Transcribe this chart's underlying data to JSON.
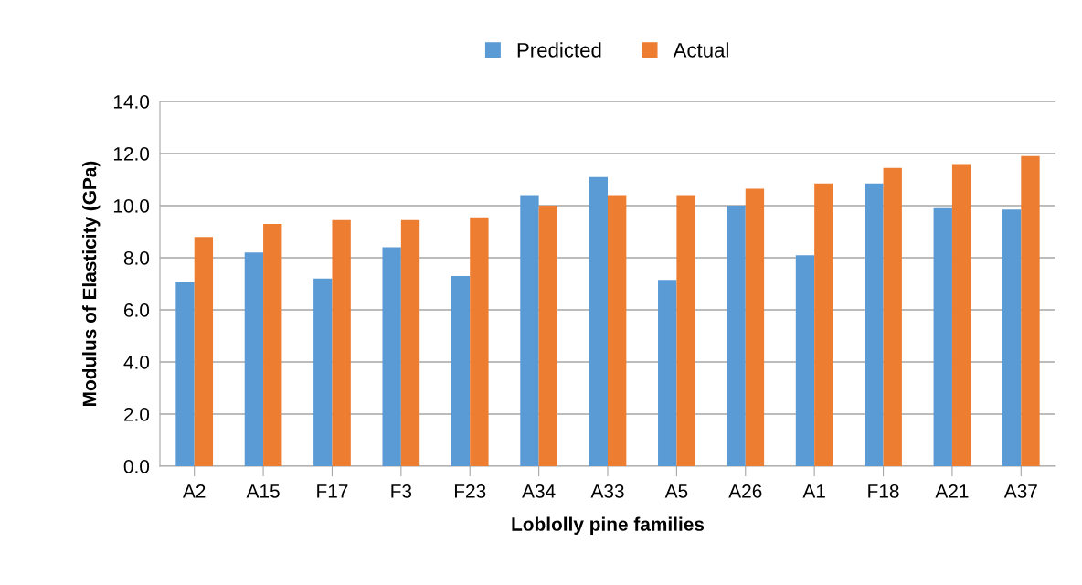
{
  "chart_data": {
    "type": "bar",
    "xlabel": "Loblolly pine families",
    "ylabel": "Modulus of Elasticity (GPa)",
    "categories": [
      "A2",
      "A15",
      "F17",
      "F3",
      "F23",
      "A34",
      "A33",
      "A5",
      "A26",
      "A1",
      "F18",
      "A21",
      "A37"
    ],
    "series": [
      {
        "name": "Predicted",
        "color": "#5b9bd5",
        "values": [
          7.05,
          8.2,
          7.2,
          8.4,
          7.3,
          10.4,
          11.1,
          7.15,
          10.0,
          8.1,
          10.85,
          9.9,
          9.85
        ]
      },
      {
        "name": "Actual",
        "color": "#ed7d31",
        "values": [
          8.8,
          9.3,
          9.45,
          9.45,
          9.55,
          10.0,
          10.4,
          10.4,
          10.65,
          10.85,
          11.45,
          11.6,
          11.9
        ]
      }
    ],
    "ylim": [
      0,
      14
    ],
    "yticks": [
      {
        "value": 0,
        "label": "0.0"
      },
      {
        "value": 2,
        "label": "2.0"
      },
      {
        "value": 4,
        "label": "4.0"
      },
      {
        "value": 6,
        "label": "6.0"
      },
      {
        "value": 8,
        "label": "8.0"
      },
      {
        "value": 10,
        "label": "10.0"
      },
      {
        "value": 12,
        "label": "12.0"
      },
      {
        "value": 14,
        "label": "14.0"
      }
    ],
    "grid": "y",
    "legend": "top"
  }
}
